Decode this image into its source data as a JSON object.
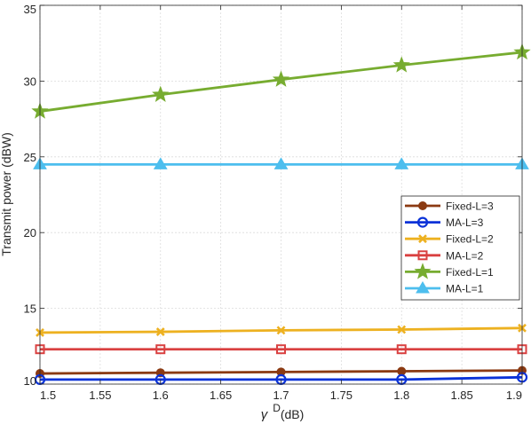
{
  "chart_data": {
    "type": "line",
    "title": "",
    "xlabel": "γ^D(dB)",
    "xlabel_main": "γ",
    "xlabel_sup": "D",
    "xlabel_suffix": "(dB)",
    "ylabel": "Transmit power (dBW)",
    "xlim": [
      1.5,
      1.9
    ],
    "ylim": [
      10,
      35
    ],
    "x_ticks": [
      "1.5",
      "1.55",
      "1.6",
      "1.65",
      "1.7",
      "1.75",
      "1.8",
      "1.85",
      "1.9"
    ],
    "y_ticks": [
      "10",
      "15",
      "20",
      "25",
      "30",
      "35"
    ],
    "grid": true,
    "legend_position": "center-right",
    "x": [
      1.5,
      1.6,
      1.7,
      1.8,
      1.9
    ],
    "series": [
      {
        "name": "Fixed-L=3",
        "color": "#8B3A12",
        "marker": "circle-filled",
        "values": [
          10.7,
          10.75,
          10.8,
          10.85,
          10.9
        ]
      },
      {
        "name": "MA-L=3",
        "color": "#0A32D8",
        "marker": "circle-open",
        "values": [
          10.3,
          10.3,
          10.3,
          10.3,
          10.45
        ]
      },
      {
        "name": "Fixed-L=2",
        "color": "#EDB120",
        "marker": "x",
        "values": [
          13.4,
          13.45,
          13.55,
          13.6,
          13.7
        ]
      },
      {
        "name": "MA-L=2",
        "color": "#D94040",
        "marker": "square",
        "values": [
          12.3,
          12.3,
          12.3,
          12.3,
          12.3
        ]
      },
      {
        "name": "Fixed-L=1",
        "color": "#77AC30",
        "marker": "star",
        "values": [
          28.0,
          29.1,
          30.1,
          31.05,
          31.9
        ]
      },
      {
        "name": "MA-L=1",
        "color": "#4DBEEE",
        "marker": "triangle",
        "values": [
          24.5,
          24.5,
          24.5,
          24.5,
          24.5
        ]
      }
    ]
  }
}
